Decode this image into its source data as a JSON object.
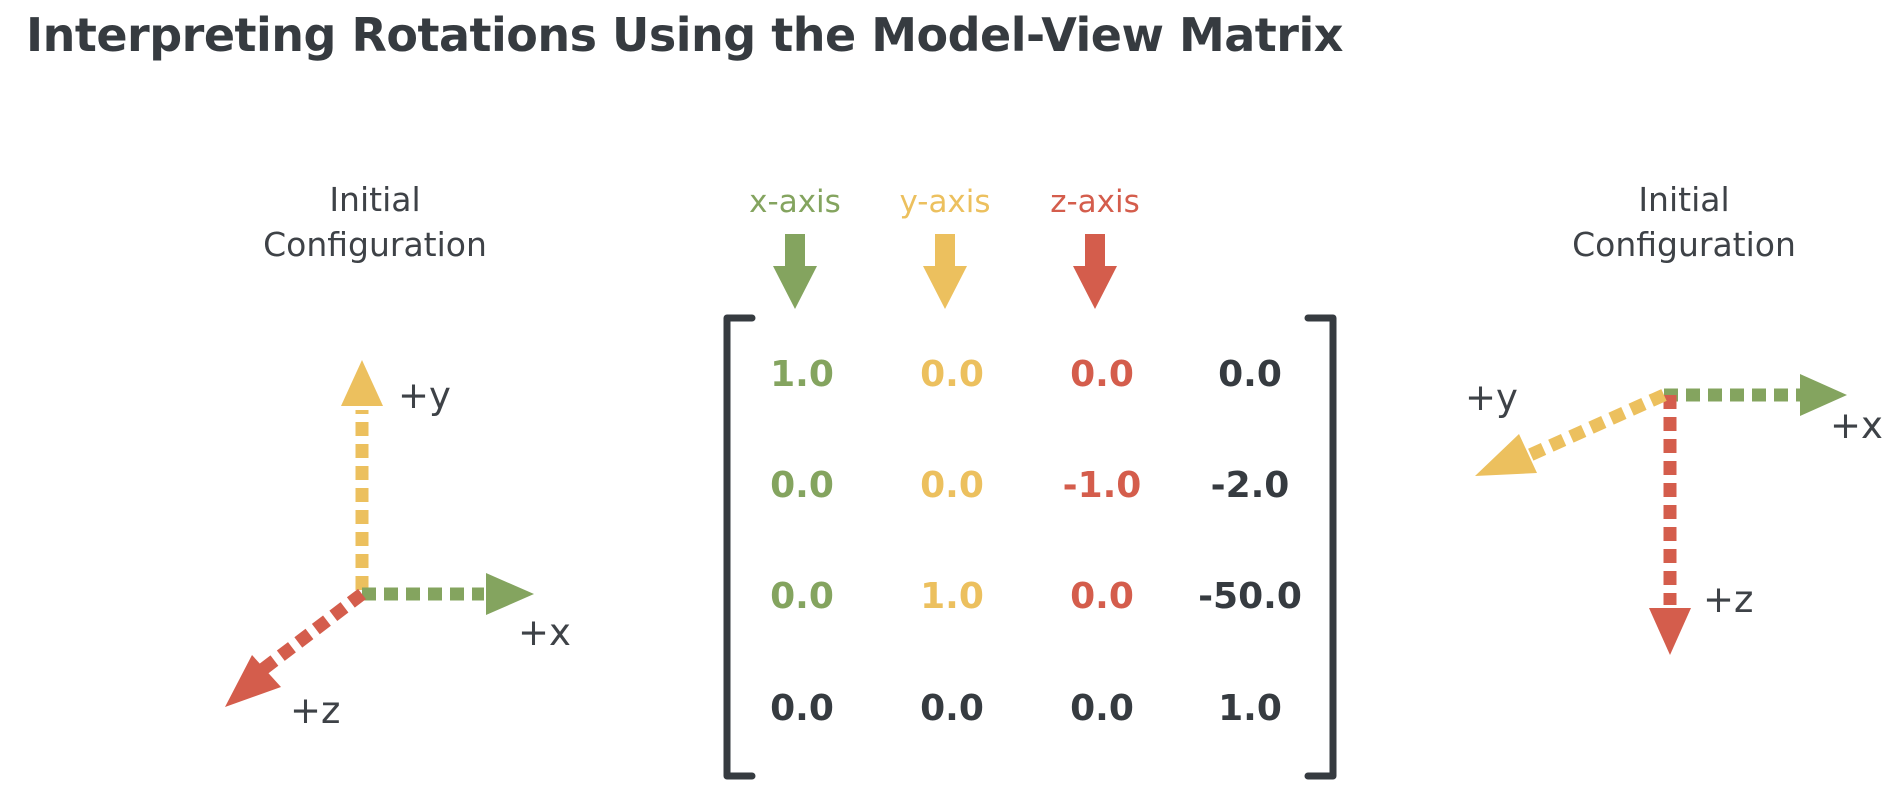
{
  "title": "Interpreting Rotations Using the Model-View Matrix",
  "colors": {
    "x": "#84a45f",
    "y": "#ecc05e",
    "z": "#d45d4c",
    "neutral": "#363b40"
  },
  "left_panel": {
    "caption_line1": "Initial",
    "caption_line2": "Configuration",
    "labels": {
      "x": "+x",
      "y": "+y",
      "z": "+z"
    }
  },
  "right_panel": {
    "caption_line1": "Initial",
    "caption_line2": "Configuration",
    "labels": {
      "x": "+x",
      "y": "+y",
      "z": "+z"
    }
  },
  "matrix": {
    "column_labels": [
      "x-axis",
      "y-axis",
      "z-axis"
    ],
    "rows": [
      [
        "1.0",
        "0.0",
        "0.0",
        "0.0"
      ],
      [
        "0.0",
        "0.0",
        "-1.0",
        "-2.0"
      ],
      [
        "0.0",
        "1.0",
        "0.0",
        "-50.0"
      ],
      [
        "0.0",
        "0.0",
        "0.0",
        "1.0"
      ]
    ]
  }
}
